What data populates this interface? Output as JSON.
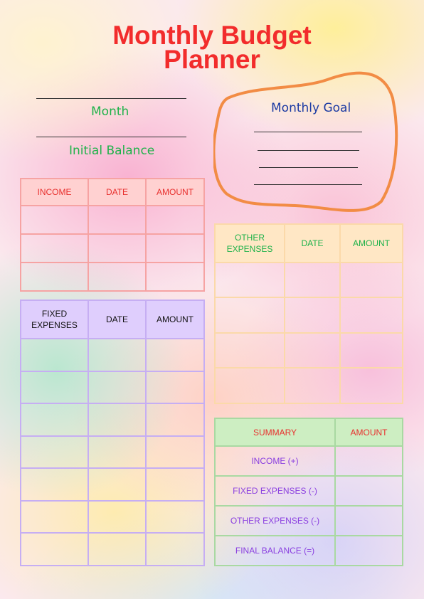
{
  "title": {
    "line1": "Monthly Budget",
    "line2": "Planner"
  },
  "fields": {
    "month": "Month",
    "initial_balance": "Initial Balance"
  },
  "goal": {
    "label": "Monthly Goal"
  },
  "income_table": {
    "headers": [
      "INCOME",
      "DATE",
      "AMOUNT"
    ],
    "row_count": 3
  },
  "fixed_table": {
    "headers": [
      "FIXED\nEXPENSES",
      "DATE",
      "AMOUNT"
    ],
    "row_count": 7
  },
  "other_table": {
    "headers": [
      "OTHER\nEXPENSES",
      "DATE",
      "AMOUNT"
    ],
    "row_count": 4
  },
  "summary_table": {
    "headers": [
      "SUMMARY",
      "AMOUNT"
    ],
    "rows": [
      "INCOME (+)",
      "FIXED EXPENSES (-)",
      "OTHER EXPENSES (-)",
      "FINAL BALANCE (=)"
    ]
  },
  "colors": {
    "title": "#f22c2c",
    "income_header": "#ffd1d1",
    "fixed_header": "#dfcefd",
    "other_header": "#ffe7c5",
    "summary_header": "#cdeec2",
    "goal_outline": "#f28c45"
  }
}
